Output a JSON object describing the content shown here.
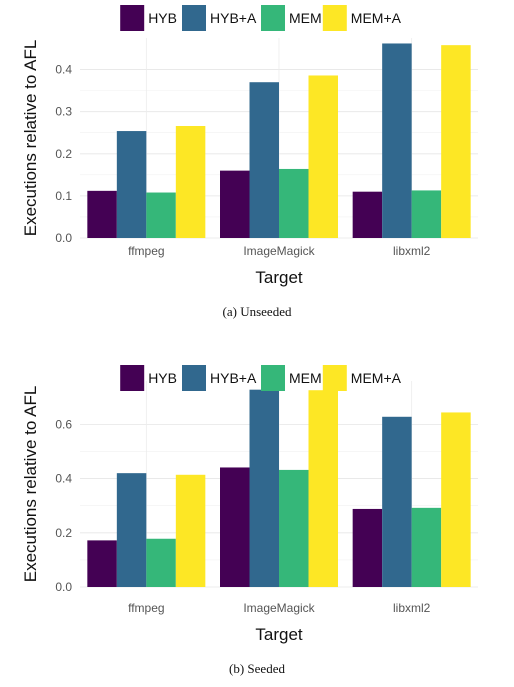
{
  "chart_data": [
    {
      "type": "bar",
      "categories": [
        "ffmpeg",
        "ImageMagick",
        "libxml2"
      ],
      "series": [
        {
          "name": "HYB",
          "color": "#440154",
          "values": [
            0.112,
            0.16,
            0.11
          ]
        },
        {
          "name": "HYB+A",
          "color": "#31688E",
          "values": [
            0.254,
            0.37,
            0.462
          ]
        },
        {
          "name": "MEM",
          "color": "#35B779",
          "values": [
            0.108,
            0.164,
            0.113
          ]
        },
        {
          "name": "MEM+A",
          "color": "#FDE725",
          "values": [
            0.266,
            0.386,
            0.458
          ]
        }
      ],
      "xlabel": "Target",
      "ylabel": "Executions relative to AFL",
      "ylim": [
        0,
        0.475
      ],
      "yticks": [
        0.0,
        0.1,
        0.2,
        0.3,
        0.4
      ],
      "ytick_labels": [
        "0.0",
        "0.1",
        "0.2",
        "0.3",
        "0.4"
      ],
      "grid": true,
      "legend_position": "top",
      "caption": "(a) Unseeded"
    },
    {
      "type": "bar",
      "categories": [
        "ffmpeg",
        "ImageMagick",
        "libxml2"
      ],
      "series": [
        {
          "name": "HYB",
          "color": "#440154",
          "values": [
            0.172,
            0.441,
            0.288
          ]
        },
        {
          "name": "HYB+A",
          "color": "#31688E",
          "values": [
            0.42,
            0.728,
            0.628
          ]
        },
        {
          "name": "MEM",
          "color": "#35B779",
          "values": [
            0.178,
            0.432,
            0.292
          ]
        },
        {
          "name": "MEM+A",
          "color": "#FDE725",
          "values": [
            0.414,
            0.726,
            0.644
          ]
        }
      ],
      "xlabel": "Target",
      "ylabel": "Executions relative to AFL",
      "ylim": [
        0,
        0.76
      ],
      "yticks": [
        0.0,
        0.2,
        0.4,
        0.6
      ],
      "ytick_labels": [
        "0.0",
        "0.2",
        "0.4",
        "0.6"
      ],
      "grid": true,
      "legend_position": "top",
      "caption": "(b) Seeded"
    }
  ]
}
